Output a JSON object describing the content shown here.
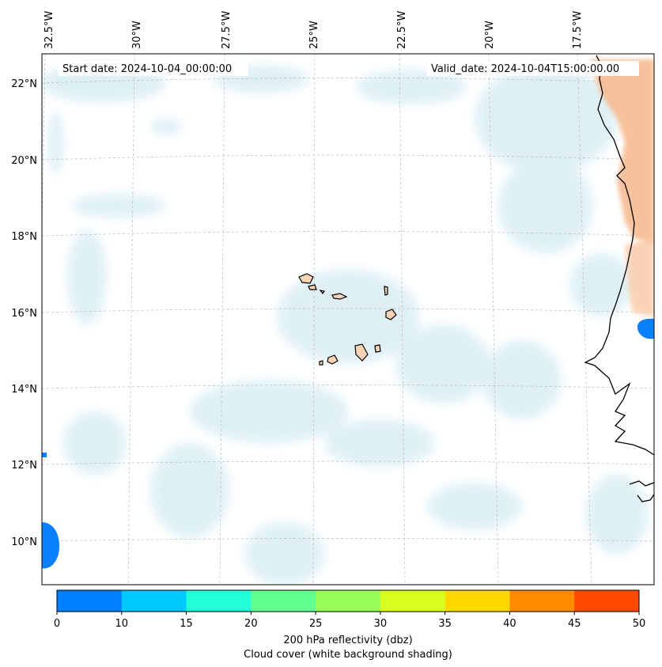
{
  "map": {
    "start_label": "Start date: 2024-10-04_00:00:00",
    "valid_label": "Valid_date: 2024-10-04T15:00:00.00",
    "lon_labels": [
      "32.5°W",
      "30°W",
      "27.5°W",
      "25°W",
      "22.5°W",
      "20°W",
      "17.5°W"
    ],
    "lat_labels": [
      "22°N",
      "20°N",
      "18°N",
      "16°N",
      "14°N",
      "12°N",
      "10°N"
    ]
  },
  "colorbar": {
    "colors": [
      "#0080ff",
      "#00c8ff",
      "#20ffd8",
      "#60ff90",
      "#98ff58",
      "#d8ff20",
      "#ffd800",
      "#ff8c00",
      "#ff4800"
    ],
    "ticks": [
      "0",
      "10",
      "15",
      "20",
      "25",
      "30",
      "35",
      "40",
      "45",
      "50"
    ],
    "label1": "200 hPa reflectivity (dbz)",
    "label2": "Cloud cover (white background shading)"
  },
  "colors": {
    "cloud": "#cfe9f1",
    "land_warm": "#f7c39a",
    "coast": "#000000",
    "frame": "#000000"
  }
}
